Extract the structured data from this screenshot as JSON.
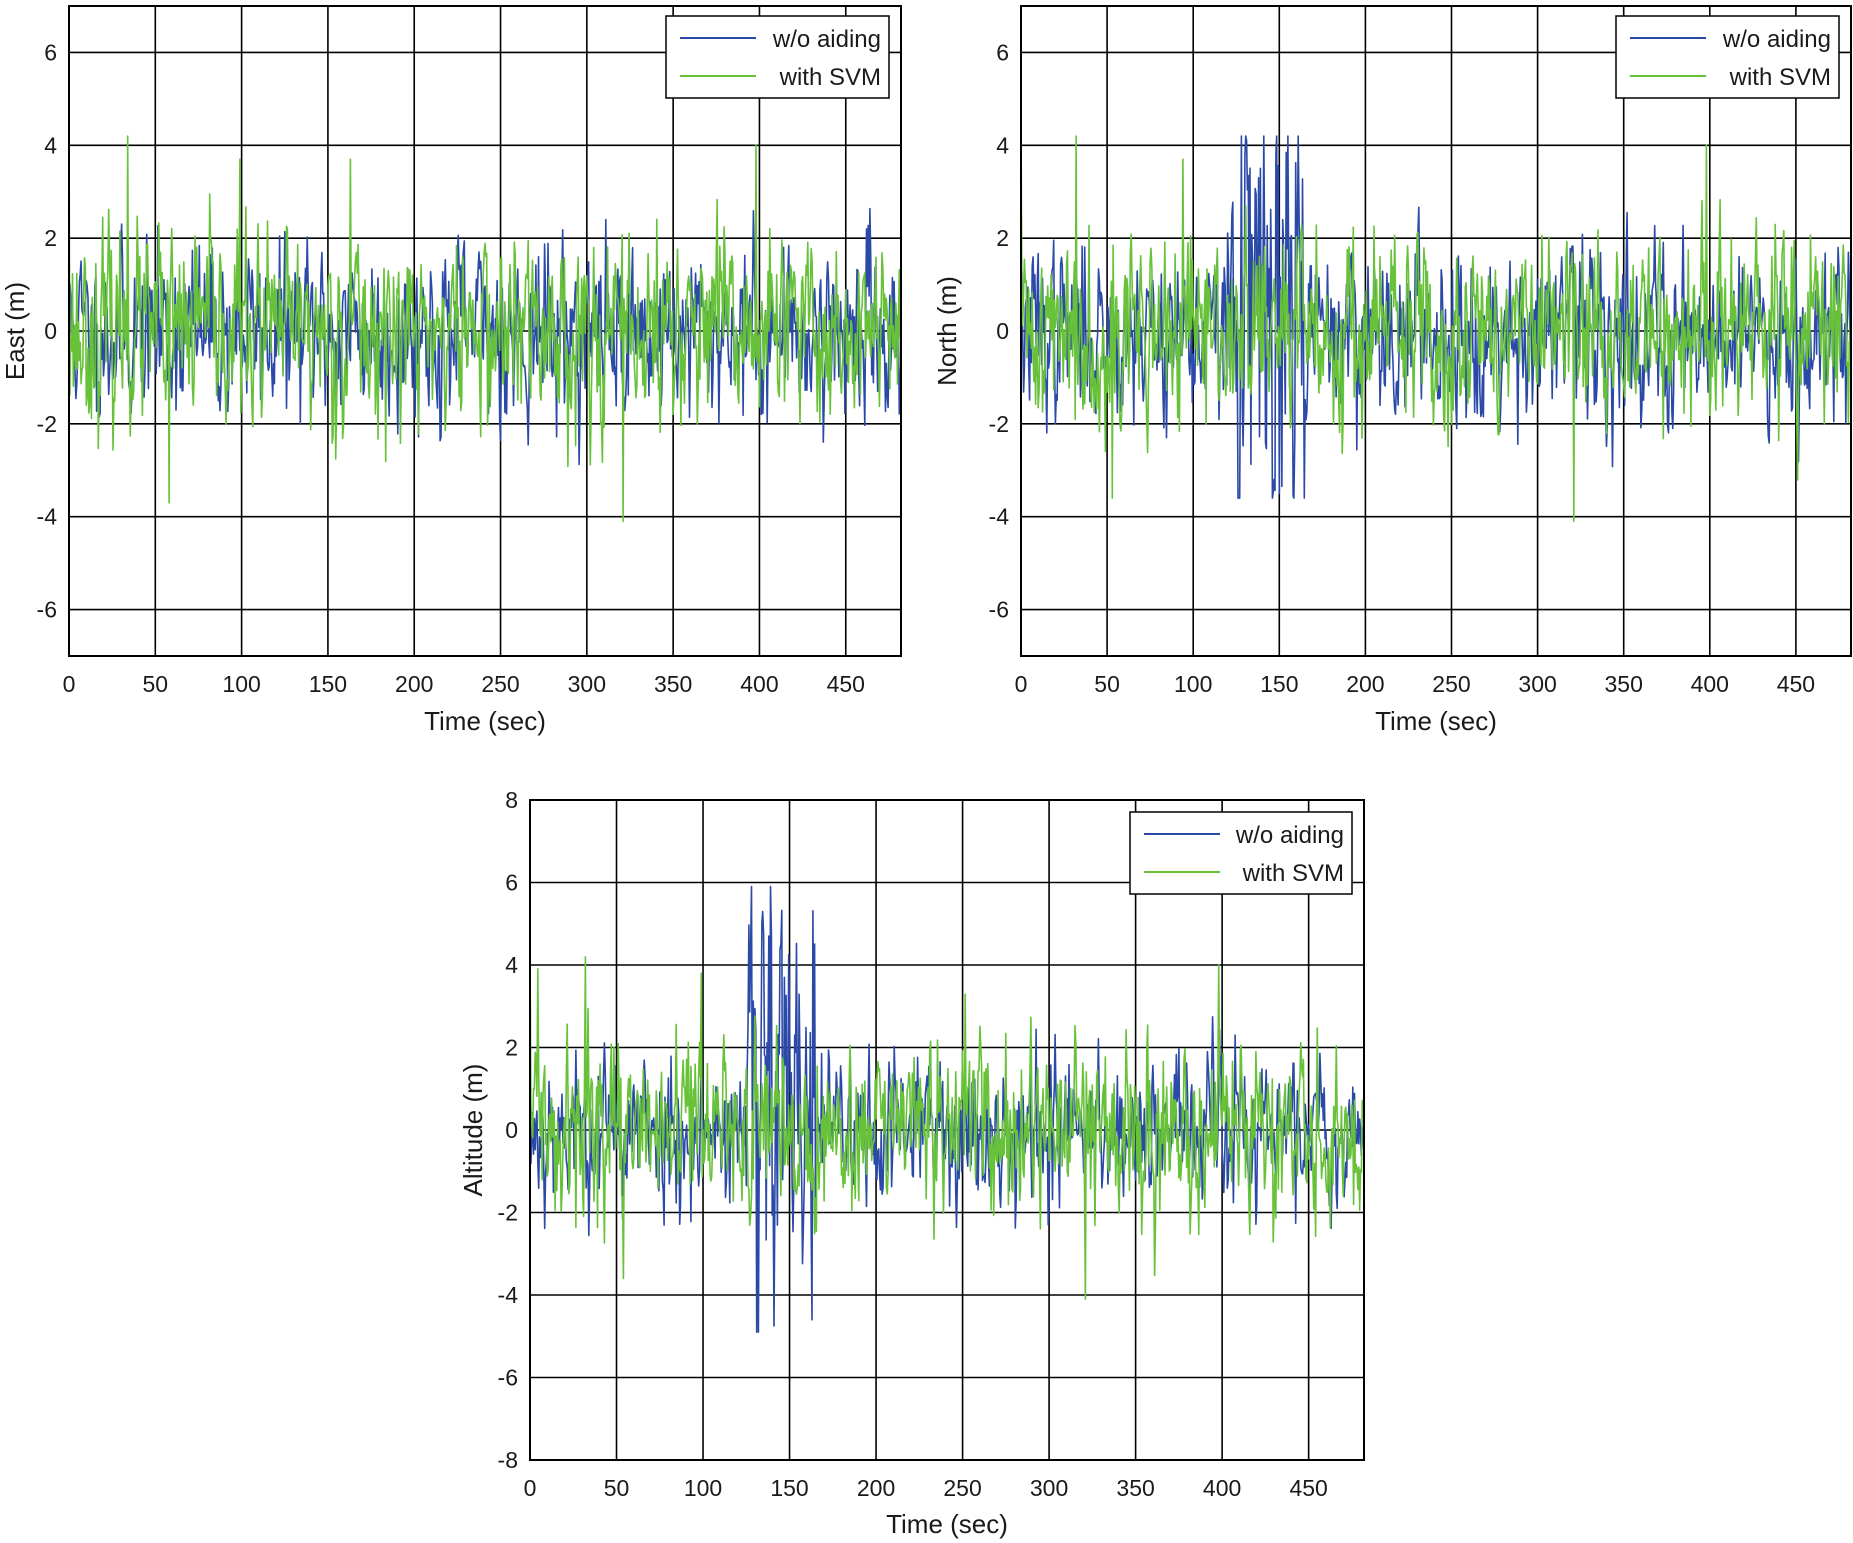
{
  "colors": {
    "without_aiding": "#2b4aa8",
    "with_svm": "#67c23a",
    "grid": "#000000",
    "frame": "#000000"
  },
  "chart_data": [
    {
      "id": "east",
      "type": "line",
      "xlabel": "Time (sec)",
      "ylabel": "East (m)",
      "xlim": [
        0,
        482
      ],
      "ylim": [
        -7,
        7
      ],
      "xticks": [
        0,
        50,
        100,
        150,
        200,
        250,
        300,
        350,
        400,
        450
      ],
      "yticks": [
        -6,
        -4,
        -2,
        0,
        2,
        4,
        6
      ],
      "grid": true,
      "legend_position": "top-right",
      "legend": [
        "w/o aiding",
        "with SVM"
      ],
      "series": [
        {
          "name": "w/o aiding",
          "color_key": "without_aiding",
          "sample_step": 0.5,
          "seed": 11,
          "base_amplitude": 0.85,
          "range": [
            -3.1,
            2.9
          ],
          "bursts": []
        },
        {
          "name": "with SVM",
          "color_key": "with_svm",
          "sample_step": 0.5,
          "seed": 23,
          "base_amplitude": 0.95,
          "range": [
            -4.1,
            4.5
          ],
          "peaks": [
            [
              0,
              4.5
            ],
            [
              34,
              4.2
            ],
            [
              99,
              3.7
            ],
            [
              163,
              3.7
            ],
            [
              321,
              -4.1
            ],
            [
              398,
              4.0
            ],
            [
              58,
              -3.7
            ]
          ]
        }
      ]
    },
    {
      "id": "north",
      "type": "line",
      "xlabel": "Time (sec)",
      "ylabel": "North (m)",
      "xlim": [
        0,
        482
      ],
      "ylim": [
        -7,
        7
      ],
      "xticks": [
        0,
        50,
        100,
        150,
        200,
        250,
        300,
        350,
        400,
        450
      ],
      "yticks": [
        -6,
        -4,
        -2,
        0,
        2,
        4,
        6
      ],
      "grid": true,
      "legend_position": "top-right",
      "legend": [
        "w/o aiding",
        "with SVM"
      ],
      "series": [
        {
          "name": "w/o aiding",
          "color_key": "without_aiding",
          "sample_step": 0.5,
          "seed": 37,
          "base_amplitude": 0.85,
          "range": [
            -3.6,
            4.2
          ],
          "bursts": [
            {
              "from": 120,
              "to": 165,
              "amplitude": 2.4
            }
          ],
          "peaks": [
            [
              155,
              4.2
            ],
            [
              138,
              3.3
            ],
            [
              126,
              -3.6
            ],
            [
              150,
              -3.5
            ]
          ]
        },
        {
          "name": "with SVM",
          "color_key": "with_svm",
          "sample_step": 0.5,
          "seed": 41,
          "base_amplitude": 0.95,
          "range": [
            -4.1,
            4.5
          ],
          "peaks": [
            [
              0,
              4.5
            ],
            [
              32,
              4.2
            ],
            [
              94,
              3.7
            ],
            [
              321,
              -4.1
            ],
            [
              398,
              4.0
            ],
            [
              53,
              -3.6
            ]
          ]
        }
      ]
    },
    {
      "id": "altitude",
      "type": "line",
      "xlabel": "Time (sec)",
      "ylabel": "Altitude (m)",
      "xlim": [
        0,
        482
      ],
      "ylim": [
        -8,
        8
      ],
      "xticks": [
        0,
        50,
        100,
        150,
        200,
        250,
        300,
        350,
        400,
        450
      ],
      "yticks": [
        -8,
        -6,
        -4,
        -2,
        0,
        2,
        4,
        6,
        8
      ],
      "grid": true,
      "legend_position": "top-right",
      "legend": [
        "w/o aiding",
        "with SVM"
      ],
      "series": [
        {
          "name": "w/o aiding",
          "color_key": "without_aiding",
          "sample_step": 0.5,
          "seed": 53,
          "base_amplitude": 0.85,
          "range": [
            -4.9,
            5.9
          ],
          "bursts": [
            {
              "from": 125,
              "to": 165,
              "amplitude": 3.0
            }
          ],
          "peaks": [
            [
              128,
              5.9
            ],
            [
              138,
              4.7
            ],
            [
              132,
              -4.9
            ],
            [
              163,
              -4.6
            ],
            [
              147,
              3.7
            ]
          ]
        },
        {
          "name": "with SVM",
          "color_key": "with_svm",
          "sample_step": 0.5,
          "seed": 59,
          "base_amplitude": 0.95,
          "range": [
            -4.1,
            4.5
          ],
          "peaks": [
            [
              0,
              4.5
            ],
            [
              32,
              4.2
            ],
            [
              99,
              3.8
            ],
            [
              321,
              -4.1
            ],
            [
              398,
              4.0
            ],
            [
              54,
              -3.6
            ]
          ]
        }
      ]
    }
  ]
}
